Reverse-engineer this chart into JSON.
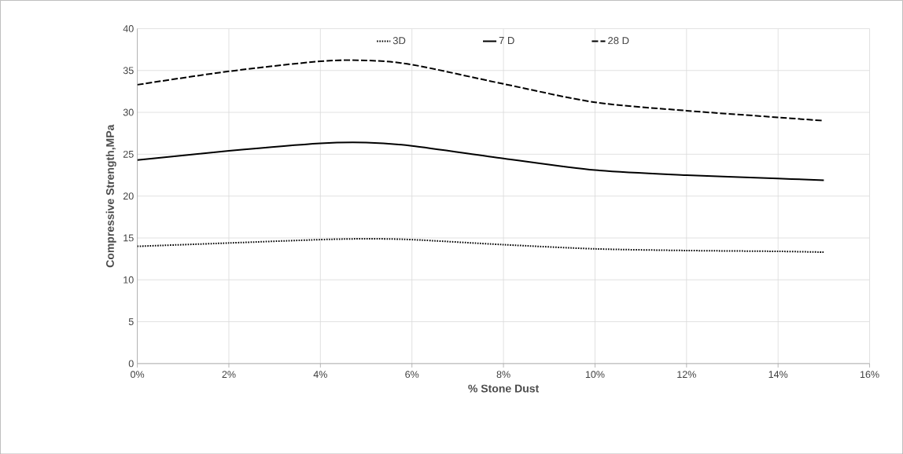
{
  "chart_data": {
    "type": "line",
    "xlabel": "% Stone Dust",
    "ylabel": "Compressive Strength,MPa",
    "x": [
      0,
      2,
      4,
      5,
      6,
      8,
      10,
      12,
      14,
      15
    ],
    "series": [
      {
        "name": "3D",
        "color": "#000000",
        "line_style": "dotted",
        "values": [
          14.0,
          14.4,
          14.8,
          14.9,
          14.8,
          14.2,
          13.7,
          13.5,
          13.4,
          13.3
        ]
      },
      {
        "name": "7 D",
        "color": "#000000",
        "line_style": "solid",
        "values": [
          24.3,
          25.4,
          26.3,
          26.4,
          26.0,
          24.5,
          23.1,
          22.5,
          22.1,
          21.9
        ]
      },
      {
        "name": "28 D",
        "color": "#000000",
        "line_style": "dashed",
        "values": [
          33.3,
          34.9,
          36.1,
          36.2,
          35.7,
          33.4,
          31.2,
          30.2,
          29.4,
          29.0
        ]
      }
    ],
    "xlim": [
      0,
      16
    ],
    "xticks": [
      {
        "value": 0,
        "label": "0%"
      },
      {
        "value": 2,
        "label": "2%"
      },
      {
        "value": 4,
        "label": "4%"
      },
      {
        "value": 6,
        "label": "6%"
      },
      {
        "value": 8,
        "label": "8%"
      },
      {
        "value": 10,
        "label": "10%"
      },
      {
        "value": 12,
        "label": "12%"
      },
      {
        "value": 14,
        "label": "14%"
      },
      {
        "value": 16,
        "label": "16%"
      }
    ],
    "ylim": [
      0,
      40
    ],
    "yticks": [
      0,
      5,
      10,
      15,
      20,
      25,
      30,
      35,
      40
    ],
    "grid": true,
    "legend": "top",
    "marker": "none"
  }
}
